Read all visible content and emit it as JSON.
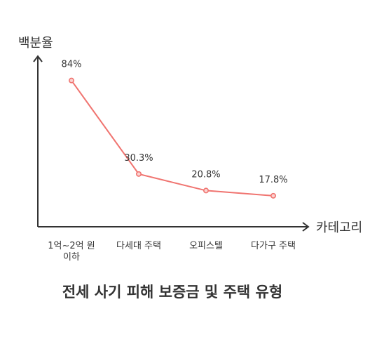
{
  "chart_data": {
    "type": "line",
    "title": "전세 사기 피해 보증금 및 주택 유형",
    "xlabel": "카테고리",
    "ylabel": "백분율",
    "categories": [
      "1억~2억 원 이하",
      "다세대 주택",
      "오피스텔",
      "다가구 주택"
    ],
    "series": [
      {
        "values": [
          84,
          30.3,
          20.8,
          17.8
        ]
      }
    ],
    "data_labels": [
      "84%",
      "30.3%",
      "20.8%",
      "17.8%"
    ],
    "ylim": [
      0,
      100
    ],
    "grid": false,
    "legend": "none",
    "line_color": "#f07470",
    "axis_color": "#333333"
  }
}
